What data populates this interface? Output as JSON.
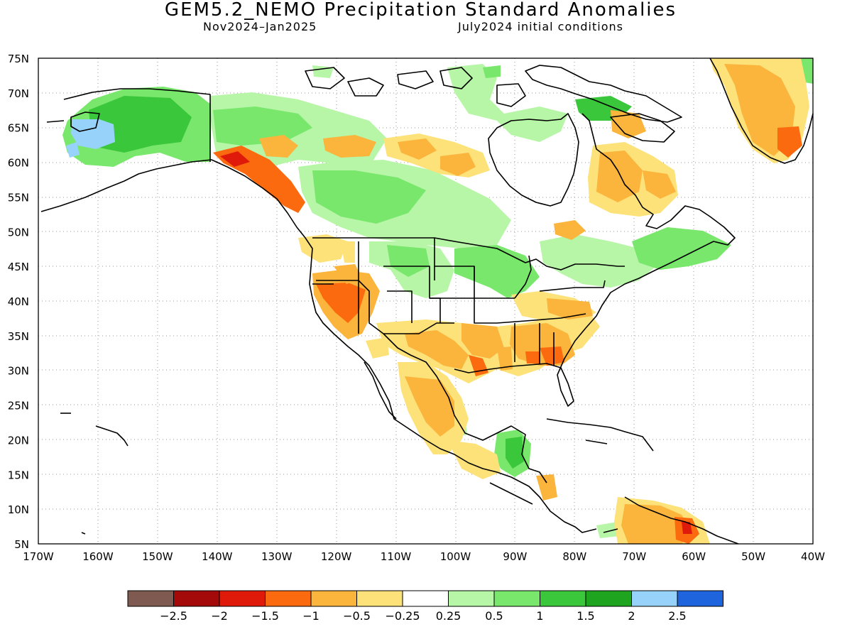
{
  "title": "GEM5.2_NEMO Precipitation Standard Anomalies",
  "subtitle_left": "Nov2024–Jan2025",
  "subtitle_right": "July2024 initial conditions",
  "lat_labels": [
    "75N",
    "70N",
    "65N",
    "60N",
    "55N",
    "50N",
    "45N",
    "40N",
    "35N",
    "30N",
    "25N",
    "20N",
    "15N",
    "10N",
    "5N"
  ],
  "lon_labels": [
    "170W",
    "160W",
    "150W",
    "140W",
    "130W",
    "120W",
    "110W",
    "100W",
    "90W",
    "80W",
    "70W",
    "60W",
    "50W",
    "40W"
  ],
  "colorbar": {
    "colors": [
      "#7f5a50",
      "#a50a0a",
      "#e01a0a",
      "#fb6a0e",
      "#fbb43c",
      "#fde27a",
      "#ffffff",
      "#b6f6a6",
      "#78e76c",
      "#3bc73b",
      "#1fa41f",
      "#96d2fa",
      "#1e64dc"
    ],
    "labels": [
      "−2.5",
      "−2",
      "−1.5",
      "−1",
      "−0.5",
      "−0.25",
      "0.25",
      "0.5",
      "1",
      "1.5",
      "2",
      "2.5"
    ]
  }
}
